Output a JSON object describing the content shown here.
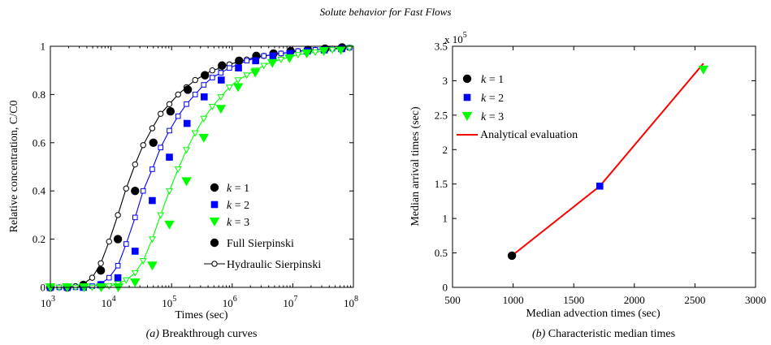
{
  "figure": {
    "suptitle": "Solute behavior for Fast Flows"
  },
  "chart_data": [
    {
      "type": "line",
      "caption_prefix": "(a)",
      "caption": "Breakthrough curves",
      "xlabel": "Times (sec)",
      "ylabel": "Relative concentration, C/C0",
      "xscale": "log",
      "xlim": [
        1000,
        100000000
      ],
      "ylim": [
        0,
        1
      ],
      "x_ticks": [
        {
          "value": 1000,
          "base": "10",
          "exp": "3"
        },
        {
          "value": 10000,
          "base": "10",
          "exp": "4"
        },
        {
          "value": 100000,
          "base": "10",
          "exp": "5"
        },
        {
          "value": 1000000,
          "base": "10",
          "exp": "6"
        },
        {
          "value": 10000000,
          "base": "10",
          "exp": "7"
        },
        {
          "value": 100000000,
          "base": "10",
          "exp": "8"
        }
      ],
      "y_ticks": [
        {
          "value": 0,
          "label": "0"
        },
        {
          "value": 0.2,
          "label": "0.2"
        },
        {
          "value": 0.4,
          "label": "0.4"
        },
        {
          "value": 0.6,
          "label": "0.6"
        },
        {
          "value": 0.8,
          "label": "0.8"
        },
        {
          "value": 1,
          "label": "1"
        }
      ],
      "legend_position": "right",
      "legend": [
        {
          "label": "k = 1",
          "marker": "circle",
          "color": "#000000"
        },
        {
          "label": "k = 2",
          "marker": "square",
          "color": "#0000ff"
        },
        {
          "label": "k = 3",
          "marker": "triangle-down",
          "color": "#00ff00"
        },
        {
          "label": "Full Sierpinski",
          "marker": "circle",
          "color": "#000000"
        },
        {
          "label": "Hydraulic Sierpinski",
          "marker": "open-circle-line",
          "color": "#000000"
        }
      ],
      "series": [
        {
          "label": "k = 1",
          "marker": "circle",
          "color": "#000000",
          "x": [
            1000,
            1900,
            3500,
            6800,
            13000,
            25000,
            50000,
            96000,
            185000,
            355000,
            680000,
            1300000,
            2500000,
            4800000,
            9200000,
            17700000,
            34000000,
            65000000
          ],
          "y": [
            0.0,
            0.0,
            0.01,
            0.07,
            0.2,
            0.4,
            0.6,
            0.73,
            0.82,
            0.88,
            0.92,
            0.94,
            0.96,
            0.97,
            0.98,
            0.985,
            0.99,
            0.995
          ]
        },
        {
          "label": "k = 2",
          "marker": "square",
          "color": "#0000ff",
          "x": [
            1000,
            1900,
            3500,
            6800,
            13000,
            25000,
            48000,
            92000,
            180000,
            345000,
            660000,
            1270000,
            2440000,
            4700000,
            9000000,
            17300000,
            33000000,
            64000000
          ],
          "y": [
            0.0,
            0.0,
            0.0,
            0.01,
            0.04,
            0.15,
            0.36,
            0.54,
            0.68,
            0.79,
            0.86,
            0.91,
            0.94,
            0.96,
            0.97,
            0.98,
            0.985,
            0.99
          ]
        },
        {
          "label": "k = 3",
          "marker": "triangle-down",
          "color": "#00ff00",
          "x": [
            1000,
            1900,
            3600,
            6900,
            13200,
            25000,
            48000,
            92000,
            176000,
            340000,
            650000,
            1250000,
            2400000,
            4600000,
            8800000,
            17000000,
            32500000,
            62000000
          ],
          "y": [
            0.0,
            0.0,
            0.0,
            0.0,
            0.0,
            0.02,
            0.09,
            0.26,
            0.44,
            0.62,
            0.74,
            0.83,
            0.89,
            0.93,
            0.95,
            0.97,
            0.98,
            0.985
          ]
        },
        {
          "label": "Hydraulic Sierpinski",
          "marker": "open-circle-line",
          "color": "#000000",
          "x": [
            1000,
            1400,
            1900,
            2600,
            3500,
            4900,
            6800,
            9300,
            13000,
            17800,
            25000,
            34000,
            48000,
            66000,
            92000,
            128000,
            176000,
            245000,
            340000,
            470000,
            650000,
            900000,
            1250000,
            1740000,
            2400000,
            3330000,
            4600000,
            6400000,
            8800000,
            12200000,
            17000000,
            23500000,
            32500000,
            45000000,
            62000000,
            86000000
          ],
          "y": [
            0.0,
            0.0,
            0.0,
            0.005,
            0.015,
            0.04,
            0.1,
            0.19,
            0.3,
            0.41,
            0.51,
            0.59,
            0.66,
            0.72,
            0.76,
            0.8,
            0.83,
            0.86,
            0.88,
            0.9,
            0.91,
            0.925,
            0.935,
            0.945,
            0.955,
            0.96,
            0.965,
            0.97,
            0.975,
            0.98,
            0.982,
            0.985,
            0.988,
            0.99,
            0.992,
            0.994
          ]
        },
        {
          "label": "Hydraulic Sierpinski k = 2",
          "marker": "open-square-line",
          "color": "#0000ff",
          "x": [
            1000,
            1400,
            1900,
            2600,
            3500,
            4900,
            6800,
            9300,
            13000,
            17800,
            25000,
            34000,
            48000,
            66000,
            92000,
            128000,
            176000,
            245000,
            340000,
            470000,
            650000,
            900000,
            1250000,
            1740000,
            2400000,
            3330000,
            4600000,
            6400000,
            8800000,
            12200000,
            17000000,
            23500000,
            32500000,
            45000000,
            62000000,
            86000000
          ],
          "y": [
            0.0,
            0.0,
            0.0,
            0.0,
            0.0,
            0.005,
            0.015,
            0.04,
            0.09,
            0.18,
            0.29,
            0.4,
            0.49,
            0.58,
            0.65,
            0.71,
            0.76,
            0.8,
            0.84,
            0.87,
            0.89,
            0.91,
            0.925,
            0.94,
            0.95,
            0.96,
            0.965,
            0.97,
            0.975,
            0.98,
            0.982,
            0.985,
            0.988,
            0.99,
            0.992,
            0.994
          ]
        },
        {
          "label": "Hydraulic Sierpinski k = 3",
          "marker": "open-triangle-line",
          "color": "#00ff00",
          "x": [
            1000,
            1400,
            1900,
            2600,
            3500,
            4900,
            6800,
            9300,
            13000,
            17800,
            25000,
            34000,
            48000,
            66000,
            92000,
            128000,
            176000,
            245000,
            340000,
            470000,
            650000,
            900000,
            1250000,
            1740000,
            2400000,
            3330000,
            4600000,
            6400000,
            8800000,
            12200000,
            17000000,
            23500000,
            32500000,
            45000000,
            62000000,
            86000000
          ],
          "y": [
            0.0,
            0.0,
            0.0,
            0.0,
            0.0,
            0.0,
            0.0,
            0.005,
            0.015,
            0.03,
            0.06,
            0.11,
            0.2,
            0.3,
            0.4,
            0.49,
            0.57,
            0.64,
            0.7,
            0.75,
            0.79,
            0.83,
            0.86,
            0.88,
            0.9,
            0.92,
            0.935,
            0.945,
            0.955,
            0.965,
            0.97,
            0.975,
            0.98,
            0.985,
            0.99,
            0.993
          ]
        }
      ]
    },
    {
      "type": "scatter",
      "caption_prefix": "(b)",
      "caption": "Characteristic median times",
      "xlabel": "Median advection times (sec)",
      "ylabel": "Median arrival times (sec)",
      "multiplier": "x 10",
      "multiplier_exp": "5",
      "xlim": [
        500,
        3000
      ],
      "ylim": [
        0,
        3.5
      ],
      "x_ticks": [
        {
          "value": 500,
          "label": "500"
        },
        {
          "value": 1000,
          "label": "1000"
        },
        {
          "value": 1500,
          "label": "1500"
        },
        {
          "value": 2000,
          "label": "2000"
        },
        {
          "value": 2500,
          "label": "2500"
        },
        {
          "value": 3000,
          "label": "3000"
        }
      ],
      "y_ticks": [
        {
          "value": 0,
          "label": "0"
        },
        {
          "value": 0.5,
          "label": "0.5"
        },
        {
          "value": 1,
          "label": "1"
        },
        {
          "value": 1.5,
          "label": "1.5"
        },
        {
          "value": 2,
          "label": "2"
        },
        {
          "value": 2.5,
          "label": "2.5"
        },
        {
          "value": 3,
          "label": "3"
        },
        {
          "value": 3.5,
          "label": "3.5"
        }
      ],
      "legend_position": "top-left",
      "legend": [
        {
          "label": "k = 1",
          "marker": "circle",
          "color": "#000000"
        },
        {
          "label": "k = 2",
          "marker": "square",
          "color": "#0000ff"
        },
        {
          "label": "k = 3",
          "marker": "triangle-down",
          "color": "#00ff00"
        },
        {
          "label": "Analytical evaluation",
          "marker": "line",
          "color": "#ff0000"
        }
      ],
      "points": [
        {
          "label": "k = 1",
          "marker": "circle",
          "color": "#000000",
          "x": 990,
          "y": 0.46
        },
        {
          "label": "k = 2",
          "marker": "square",
          "color": "#0000ff",
          "x": 1715,
          "y": 1.47
        },
        {
          "label": "k = 3",
          "marker": "triangle-down",
          "color": "#00ff00",
          "x": 2570,
          "y": 3.16
        }
      ],
      "line": {
        "label": "Analytical evaluation",
        "color": "#ff0000",
        "x": [
          990,
          1715,
          2570
        ],
        "y": [
          0.46,
          1.47,
          3.25
        ]
      }
    }
  ]
}
